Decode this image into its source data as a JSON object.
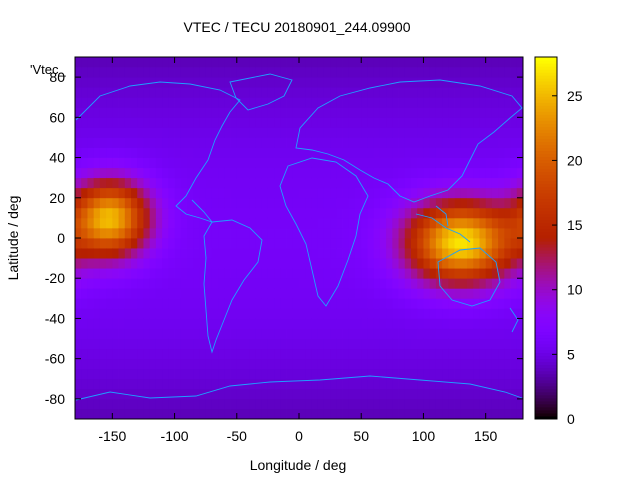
{
  "chart_data": {
    "type": "heatmap",
    "title": "VTEC / TECU 20180901_244.09900",
    "xlabel": "Longitude / deg",
    "ylabel": "Latitude / deg",
    "series_label": "'Vtec_",
    "xlim": [
      -180,
      180
    ],
    "ylim": [
      -90,
      90
    ],
    "xticks": [
      -150,
      -100,
      -50,
      0,
      50,
      100,
      150
    ],
    "yticks": [
      -80,
      -60,
      -40,
      -20,
      0,
      20,
      40,
      60,
      80
    ],
    "colorbar": {
      "min": 0,
      "max": 28,
      "ticks": [
        0,
        5,
        10,
        15,
        20,
        25
      ],
      "palette": "gnuplot-hot-purple"
    },
    "grid_step_deg": 5,
    "maxima": [
      {
        "lon": -152,
        "lat": 10,
        "value": 25,
        "sigma_lon": 22,
        "sigma_lat": 13
      },
      {
        "lon": 130,
        "lat": -2,
        "value": 27,
        "sigma_lon": 30,
        "sigma_lat": 14
      }
    ],
    "background_value": 6
  }
}
